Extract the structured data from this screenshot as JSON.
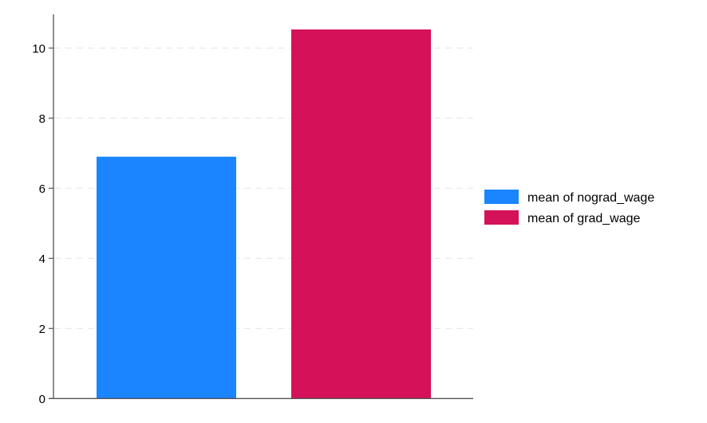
{
  "chart_data": {
    "type": "bar",
    "title": "",
    "xlabel": "",
    "ylabel": "",
    "ylim": [
      0,
      10.8
    ],
    "yticks": [
      0,
      2,
      4,
      6,
      8,
      10
    ],
    "grid": true,
    "legend_position": "right",
    "series": [
      {
        "name": "mean of nograd_wage",
        "values": [
          6.9
        ],
        "color": "#1a85ff"
      },
      {
        "name": "mean of grad_wage",
        "values": [
          10.53
        ],
        "color": "#d41159"
      }
    ]
  }
}
